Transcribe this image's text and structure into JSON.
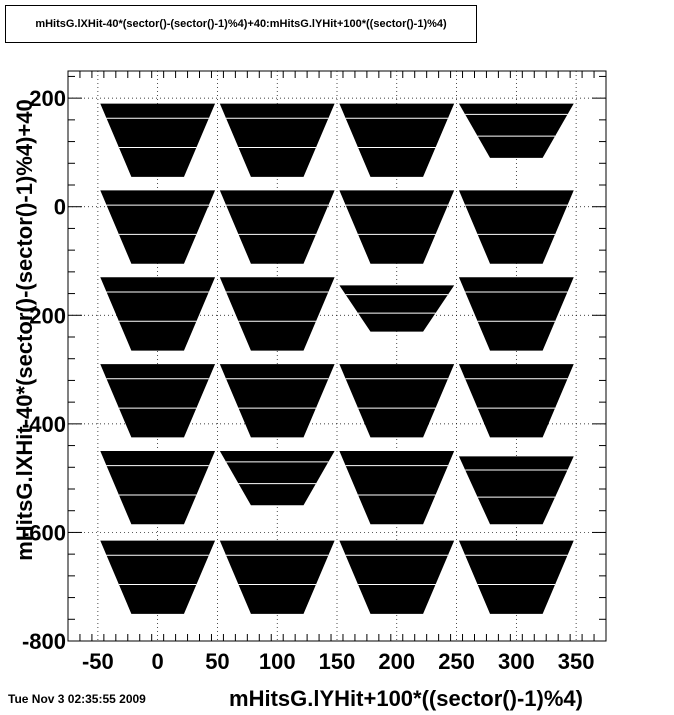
{
  "chart_data": {
    "type": "scatter",
    "title": "mHitsG.lXHit-40*(sector()-(sector()-1)%4)+40:mHitsG.lYHit+100*((sector()-1)%4)",
    "xlabel": "mHitsG.lYHit+100*((sector()-1)%4)",
    "ylabel": "mHitsG.lXHit-40*(sector()-(sector()-1)%4)+40",
    "xlim": [
      -75,
      375
    ],
    "ylim": [
      -800,
      250
    ],
    "xticks": [
      -50,
      0,
      50,
      100,
      150,
      200,
      250,
      300,
      350
    ],
    "yticks": [
      200,
      0,
      -200,
      -400,
      -600,
      -800
    ],
    "grid": true,
    "marker_color": "#000000",
    "sectors": [
      {
        "row": 0,
        "col": 0,
        "x_center": 0,
        "y_top": 190,
        "y_bottom": 55
      },
      {
        "row": 0,
        "col": 1,
        "x_center": 100,
        "y_top": 190,
        "y_bottom": 55
      },
      {
        "row": 0,
        "col": 2,
        "x_center": 200,
        "y_top": 190,
        "y_bottom": 55
      },
      {
        "row": 0,
        "col": 3,
        "x_center": 300,
        "y_top": 190,
        "y_bottom": 90
      },
      {
        "row": 1,
        "col": 0,
        "x_center": 0,
        "y_top": 30,
        "y_bottom": -105
      },
      {
        "row": 1,
        "col": 1,
        "x_center": 100,
        "y_top": 30,
        "y_bottom": -105
      },
      {
        "row": 1,
        "col": 2,
        "x_center": 200,
        "y_top": 30,
        "y_bottom": -105
      },
      {
        "row": 1,
        "col": 3,
        "x_center": 300,
        "y_top": 30,
        "y_bottom": -105
      },
      {
        "row": 2,
        "col": 0,
        "x_center": 0,
        "y_top": -130,
        "y_bottom": -265
      },
      {
        "row": 2,
        "col": 1,
        "x_center": 100,
        "y_top": -130,
        "y_bottom": -265
      },
      {
        "row": 2,
        "col": 2,
        "x_center": 200,
        "y_top": -145,
        "y_bottom": -230
      },
      {
        "row": 2,
        "col": 3,
        "x_center": 300,
        "y_top": -130,
        "y_bottom": -265
      },
      {
        "row": 3,
        "col": 0,
        "x_center": 0,
        "y_top": -290,
        "y_bottom": -425
      },
      {
        "row": 3,
        "col": 1,
        "x_center": 100,
        "y_top": -290,
        "y_bottom": -425
      },
      {
        "row": 3,
        "col": 2,
        "x_center": 200,
        "y_top": -290,
        "y_bottom": -425
      },
      {
        "row": 3,
        "col": 3,
        "x_center": 300,
        "y_top": -290,
        "y_bottom": -425
      },
      {
        "row": 4,
        "col": 0,
        "x_center": 0,
        "y_top": -450,
        "y_bottom": -585
      },
      {
        "row": 4,
        "col": 1,
        "x_center": 100,
        "y_top": -450,
        "y_bottom": -550
      },
      {
        "row": 4,
        "col": 2,
        "x_center": 200,
        "y_top": -450,
        "y_bottom": -585
      },
      {
        "row": 4,
        "col": 3,
        "x_center": 300,
        "y_top": -460,
        "y_bottom": -585
      },
      {
        "row": 5,
        "col": 0,
        "x_center": 0,
        "y_top": -615,
        "y_bottom": -750
      },
      {
        "row": 5,
        "col": 1,
        "x_center": 100,
        "y_top": -615,
        "y_bottom": -750
      },
      {
        "row": 5,
        "col": 2,
        "x_center": 200,
        "y_top": -615,
        "y_bottom": -750
      },
      {
        "row": 5,
        "col": 3,
        "x_center": 300,
        "y_top": -615,
        "y_bottom": -750
      }
    ]
  },
  "footer": {
    "timestamp": "Tue Nov  3 02:35:55 2009"
  }
}
